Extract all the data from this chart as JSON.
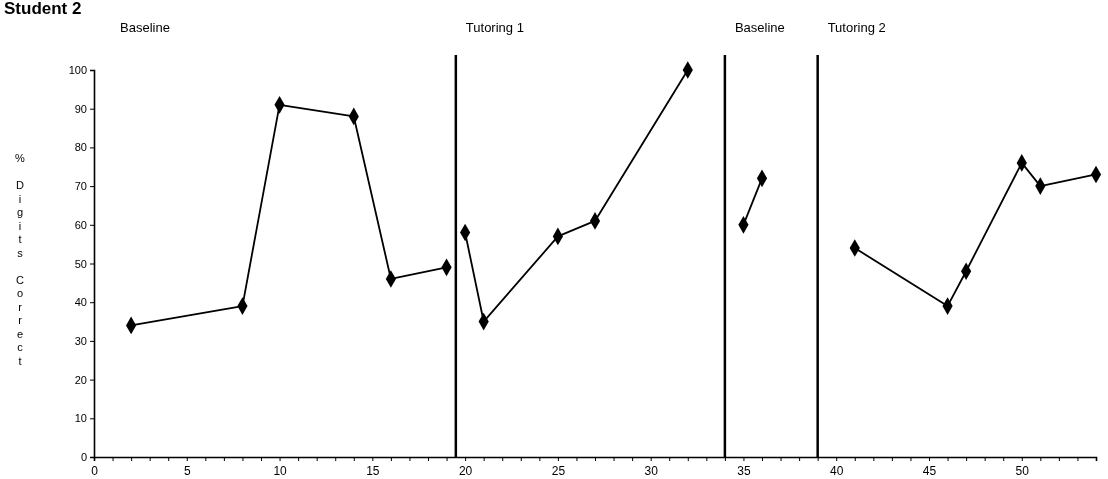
{
  "chart_data": {
    "type": "line",
    "title": "Student 2",
    "ylabel": "% Digits Correct",
    "marker": "diamond",
    "line_style": "solid",
    "grid": false,
    "xlim": [
      0,
      54
    ],
    "xticks": [
      0,
      {
        "value": 1,
        "label": null
      },
      {
        "value": 2,
        "label": null
      },
      {
        "value": 3,
        "label": null
      },
      {
        "value": 4,
        "label": null
      },
      5,
      {
        "value": 6,
        "label": null
      },
      {
        "value": 7,
        "label": null
      },
      {
        "value": 8,
        "label": null
      },
      {
        "value": 9,
        "label": null
      },
      10,
      {
        "value": 11,
        "label": null
      },
      {
        "value": 12,
        "label": null
      },
      {
        "value": 13,
        "label": null
      },
      {
        "value": 14,
        "label": null
      },
      15,
      {
        "value": 16,
        "label": null
      },
      {
        "value": 17,
        "label": null
      },
      {
        "value": 18,
        "label": null
      },
      {
        "value": 19,
        "label": null
      },
      20,
      {
        "value": 21,
        "label": null
      },
      {
        "value": 22,
        "label": null
      },
      {
        "value": 23,
        "label": null
      },
      {
        "value": 24,
        "label": null
      },
      25,
      {
        "value": 26,
        "label": null
      },
      {
        "value": 27,
        "label": null
      },
      {
        "value": 28,
        "label": null
      },
      {
        "value": 29,
        "label": null
      },
      30,
      {
        "value": 31,
        "label": null
      },
      {
        "value": 32,
        "label": null
      },
      {
        "value": 33,
        "label": null
      },
      {
        "value": 34,
        "label": null
      },
      35,
      {
        "value": 36,
        "label": null
      },
      {
        "value": 37,
        "label": null
      },
      {
        "value": 38,
        "label": null
      },
      {
        "value": 39,
        "label": null
      },
      40,
      {
        "value": 41,
        "label": null
      },
      {
        "value": 42,
        "label": null
      },
      {
        "value": 43,
        "label": null
      },
      {
        "value": 44,
        "label": null
      },
      45,
      {
        "value": 46,
        "label": null
      },
      {
        "value": 47,
        "label": null
      },
      {
        "value": 48,
        "label": null
      },
      {
        "value": 49,
        "label": null
      },
      50,
      {
        "value": 51,
        "label": null
      },
      {
        "value": 52,
        "label": null
      },
      {
        "value": 53,
        "label": null
      }
    ],
    "ylim": [
      0,
      100
    ],
    "yticks": [
      0,
      10,
      20,
      30,
      40,
      50,
      60,
      70,
      80,
      90,
      100
    ],
    "series": [
      {
        "color": "#000000",
        "x": [
          2,
          8,
          10,
          14,
          16,
          19
        ],
        "values": [
          34,
          39,
          91,
          88,
          46,
          49
        ]
      },
      {
        "color": "#000000",
        "x": [
          20,
          21,
          25,
          27,
          32
        ],
        "values": [
          58,
          35,
          57,
          61,
          100
        ]
      },
      {
        "color": "#000000",
        "x": [
          35,
          36
        ],
        "values": [
          60,
          72
        ]
      },
      {
        "color": "#000000",
        "x": [
          41,
          46,
          47,
          50,
          51,
          54
        ],
        "values": [
          54,
          39,
          48,
          76,
          70,
          73
        ]
      }
    ],
    "ref_lines": [
      {
        "axis": "x",
        "value": 19.5,
        "color": "#000000"
      },
      {
        "axis": "x",
        "value": 34,
        "color": "#000000"
      },
      {
        "axis": "x",
        "value": 39,
        "color": "#000000"
      }
    ],
    "annotations": [
      "Baseline",
      "Tutoring 1",
      "Baseline",
      "Tutoring 2"
    ]
  }
}
